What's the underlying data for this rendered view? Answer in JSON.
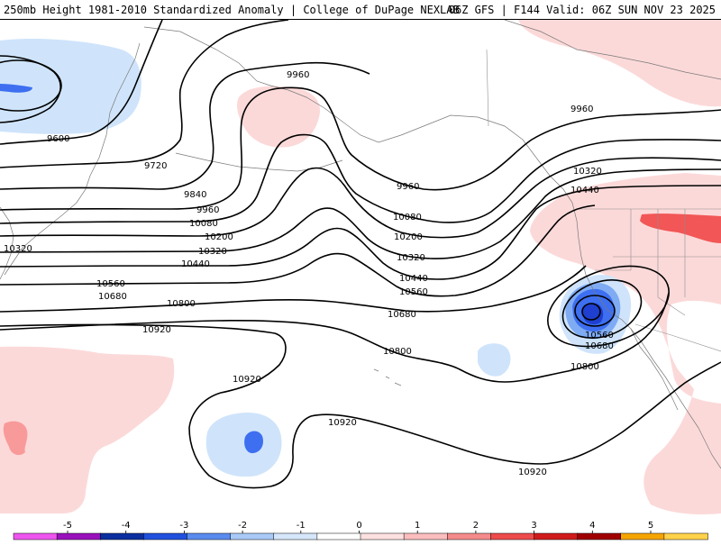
{
  "title": {
    "left": "250mb Height 1981-2010 Standardized Anomaly | College of DuPage NEXLAB",
    "right": "06Z GFS | F144 Valid: 06Z SUN NOV 23 2025"
  },
  "contour_labels": {
    "c9600": "9600",
    "c9720": "9720",
    "c9840": "9840",
    "c9960a": "9960",
    "c9960b": "9960",
    "c9960c": "9960",
    "c9960d": "9960",
    "c10080a": "10080",
    "c10080b": "10080",
    "c10200a": "10200",
    "c10200b": "10200",
    "c10320a": "10320",
    "c10320b": "10320",
    "c10320c": "10320",
    "c10320d": "10320",
    "c10440a": "10440",
    "c10440b": "10440",
    "c10440c": "10440",
    "c10560a": "10560",
    "c10560b": "10560",
    "c10560c": "10560",
    "c10680a": "10680",
    "c10680b": "10680",
    "c10680c": "10680",
    "c10800a": "10800",
    "c10800b": "10800",
    "c10800c": "10800",
    "c10920a": "10920",
    "c10920b": "10920",
    "c10920c": "10920",
    "c10920d": "10920"
  },
  "colorbar": {
    "ticks": [
      "-5",
      "-4",
      "-3",
      "-2",
      "-1",
      "0",
      "1",
      "2",
      "3",
      "4",
      "5"
    ],
    "colors": [
      "#ee55ee",
      "#9911bb",
      "#0b2fa0",
      "#2150dd",
      "#5a8bef",
      "#a9c9f7",
      "#d6e7fb",
      "#ffffff",
      "#fde0e0",
      "#fbbdbd",
      "#f48a8a",
      "#ee4b4b",
      "#d11b1b",
      "#a00000",
      "#f6a500",
      "#ffd24a"
    ]
  },
  "colors": {
    "positive_1": "#fcd9d9",
    "positive_2": "#f99a9a",
    "positive_3": "#f25656",
    "negative_1": "#cfe4fb",
    "negative_2": "#7fabf3",
    "negative_3": "#3d6ff0",
    "negative_4": "#1e3fcf"
  }
}
